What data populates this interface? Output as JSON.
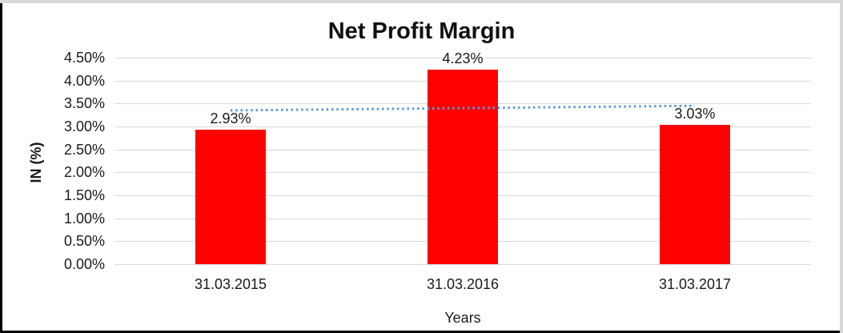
{
  "window": {
    "background": "#FFFFFF",
    "border_color": "#000000",
    "outer_edge_color": "#D8D8D8"
  },
  "chart_data": {
    "type": "bar",
    "title": "Net Profit Margin",
    "xlabel": "Years",
    "ylabel": "IN (%)",
    "categories": [
      "31.03.2015",
      "31.03.2016",
      "31.03.2017"
    ],
    "values": [
      2.93,
      4.23,
      3.03
    ],
    "data_labels": [
      "2.93%",
      "4.23%",
      "3.03%"
    ],
    "ylim": [
      0,
      4.5
    ],
    "ytick_step": 0.5,
    "ytick_labels": [
      "0.00%",
      "0.50%",
      "1.00%",
      "1.50%",
      "2.00%",
      "2.50%",
      "3.00%",
      "3.50%",
      "4.00%",
      "4.50%"
    ],
    "grid": true,
    "legend": "none",
    "bar_color": "#FF0000",
    "gridline_color": "#D9D9D9",
    "text_color": "#1A1A1A",
    "trendline": {
      "style": "dotted",
      "color": "#5B9BD5",
      "values_at_ends": [
        3.35,
        3.45
      ]
    }
  }
}
